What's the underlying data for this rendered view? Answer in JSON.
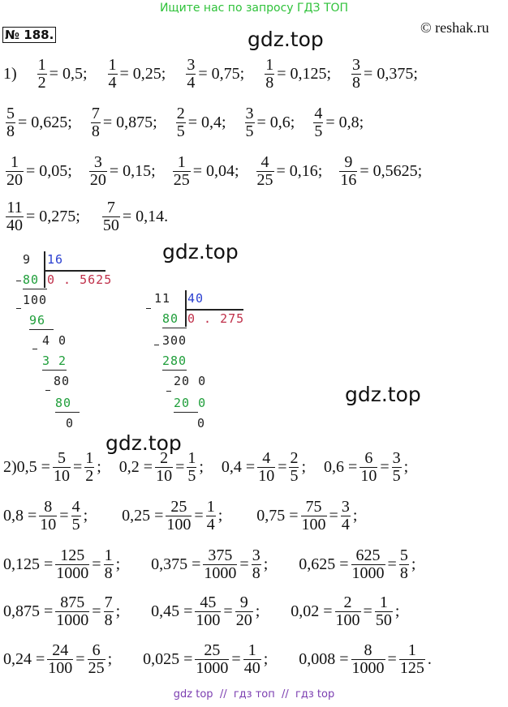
{
  "header": {
    "banner": "Ищите нас по запросу ГДЗ ТОП",
    "number": "№ 188.",
    "copyright": "© reshak.ru"
  },
  "watermarks": [
    "gdz.top",
    "gdz.top",
    "gdz.top",
    "gdz.top"
  ],
  "part1": {
    "label": "1)",
    "rows": [
      [
        {
          "num": "1",
          "den": "2",
          "rest": "= 0,5;"
        },
        {
          "num": "1",
          "den": "4",
          "rest": "= 0,25;"
        },
        {
          "num": "3",
          "den": "4",
          "rest": "= 0,75;"
        },
        {
          "num": "1",
          "den": "8",
          "rest": "= 0,125;"
        },
        {
          "num": "3",
          "den": "8",
          "rest": "= 0,375;"
        }
      ],
      [
        {
          "num": "5",
          "den": "8",
          "rest": "= 0,625;"
        },
        {
          "num": "7",
          "den": "8",
          "rest": "= 0,875;"
        },
        {
          "num": "2",
          "den": "5",
          "rest": "= 0,4;"
        },
        {
          "num": "3",
          "den": "5",
          "rest": "= 0,6;"
        },
        {
          "num": "4",
          "den": "5",
          "rest": "= 0,8;"
        }
      ],
      [
        {
          "num": "1",
          "den": "20",
          "rest": "= 0,05;"
        },
        {
          "num": "3",
          "den": "20",
          "rest": "= 0,15;"
        },
        {
          "num": "1",
          "den": "25",
          "rest": "= 0,04;"
        },
        {
          "num": "4",
          "den": "25",
          "rest": "= 0,16;"
        },
        {
          "num": "9",
          "den": "16",
          "rest": "= 0,5625;"
        }
      ],
      [
        {
          "num": "11",
          "den": "40",
          "rest": "= 0,275;"
        },
        {
          "num": "7",
          "den": "50",
          "rest": "= 0,14."
        }
      ]
    ]
  },
  "division_1": {
    "dividend": "9",
    "divisor": "16",
    "quotient": "0 . 5625",
    "steps": [
      "80",
      "100",
      "96",
      "4 0",
      "3 2",
      "80",
      "80",
      "0"
    ]
  },
  "division_2": {
    "dividend": "11",
    "divisor": "40",
    "quotient": "0 . 275",
    "steps": [
      "80",
      "300",
      "280",
      "20 0",
      "20 0",
      "0"
    ]
  },
  "part2": {
    "label": "2)",
    "rows": [
      [
        {
          "lead": "0,5 =",
          "n1": "5",
          "d1": "10",
          "n2": "1",
          "d2": "2",
          "end": ";"
        },
        {
          "lead": "0,2 =",
          "n1": "2",
          "d1": "10",
          "n2": "1",
          "d2": "5",
          "end": ";"
        },
        {
          "lead": "0,4 =",
          "n1": "4",
          "d1": "10",
          "n2": "2",
          "d2": "5",
          "end": ";"
        },
        {
          "lead": "0,6 =",
          "n1": "6",
          "d1": "10",
          "n2": "3",
          "d2": "5",
          "end": ";"
        }
      ],
      [
        {
          "lead": "0,8 =",
          "n1": "8",
          "d1": "10",
          "n2": "4",
          "d2": "5",
          "end": ";"
        },
        {
          "lead": "0,25 =",
          "n1": "25",
          "d1": "100",
          "n2": "1",
          "d2": "4",
          "end": ";"
        },
        {
          "lead": "0,75 =",
          "n1": "75",
          "d1": "100",
          "n2": "3",
          "d2": "4",
          "end": ";"
        }
      ],
      [
        {
          "lead": "0,125 =",
          "n1": "125",
          "d1": "1000",
          "n2": "1",
          "d2": "8",
          "end": ";"
        },
        {
          "lead": "0,375 =",
          "n1": "375",
          "d1": "1000",
          "n2": "3",
          "d2": "8",
          "end": ";"
        },
        {
          "lead": "0,625 =",
          "n1": "625",
          "d1": "1000",
          "n2": "5",
          "d2": "8",
          "end": ";"
        }
      ],
      [
        {
          "lead": "0,875 =",
          "n1": "875",
          "d1": "1000",
          "n2": "7",
          "d2": "8",
          "end": ";"
        },
        {
          "lead": "0,45 =",
          "n1": "45",
          "d1": "100",
          "n2": "9",
          "d2": "20",
          "end": ";"
        },
        {
          "lead": "0,02 =",
          "n1": "2",
          "d1": "100",
          "n2": "1",
          "d2": "50",
          "end": ";"
        }
      ],
      [
        {
          "lead": "0,24 =",
          "n1": "24",
          "d1": "100",
          "n2": "6",
          "d2": "25",
          "end": ";"
        },
        {
          "lead": "0,025 =",
          "n1": "25",
          "d1": "1000",
          "n2": "1",
          "d2": "40",
          "end": ";"
        },
        {
          "lead": "0,008 =",
          "n1": "8",
          "d1": "1000",
          "n2": "1",
          "d2": "125",
          "end": "."
        }
      ]
    ]
  },
  "footer": "gdz top  //  гдз топ  //  гдз top"
}
